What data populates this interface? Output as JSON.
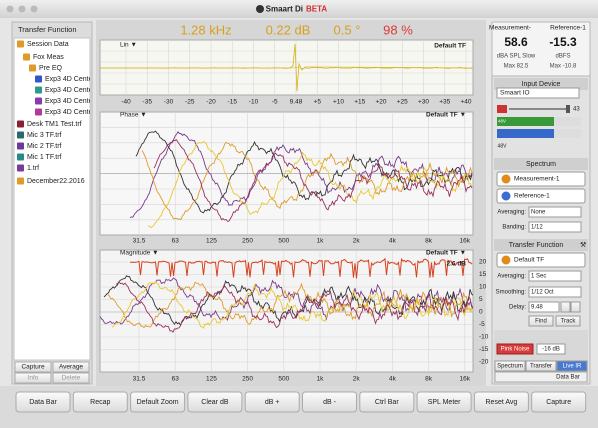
{
  "window": {
    "app_name": "Smaart Di",
    "badge": "BETA"
  },
  "readouts": [
    "1.28 kHz",
    "0.22 dB",
    "0.5 °",
    "98 %"
  ],
  "left_panel": {
    "title": "Transfer Function",
    "tree": [
      "Session Data",
      "Fox Meas",
      "Pre EQ",
      "Exp3 4D Cente",
      "Exp3 4D Cente",
      "Exp3 4D Cente",
      "Exp3 4D Cente",
      "Desk TM1 Test.trf",
      "Mic 3 TF.trf",
      "Mic 2 TF.trf",
      "Mic 1 TF.trf",
      "1.trf",
      "December22.2016"
    ],
    "buttons": [
      "Capture",
      "Average",
      "Info",
      "Delete"
    ]
  },
  "plots": {
    "live_ir": {
      "label": "Lin ▼",
      "trace": "Default TF",
      "x_ticks": [
        "-40",
        "-35",
        "-30",
        "-25",
        "-20",
        "-15",
        "-10",
        "-5",
        "9.48",
        "+5",
        "+10",
        "+15",
        "+20",
        "+25",
        "+30",
        "+35",
        "+40"
      ]
    },
    "phase": {
      "label": "Phase ▼",
      "trace": "Default TF ▼"
    },
    "freq_ticks": [
      "31.5",
      "63",
      "125",
      "250",
      "500",
      "1k",
      "2k",
      "4k",
      "8k",
      "16k"
    ],
    "magnitude": {
      "label": "Magnitude ▼",
      "trace": "Default TF ▼",
      "value": "2.6 dB",
      "y_ticks": [
        "20",
        "15",
        "10",
        "5",
        "0",
        "-5",
        "-10",
        "-15",
        "-20"
      ]
    }
  },
  "right_panel": {
    "meter": {
      "col1": "Measurement-",
      "col2": "Reference-1",
      "value1": "58.6",
      "value2": "-15.3",
      "unit1": "dBA SPL Slow",
      "unit2": "dBFS",
      "max1": "Max  82.5",
      "max2": "Max  -10.8"
    },
    "input_device": {
      "title": "Input Device",
      "device": "Smaart IO",
      "gain": "43",
      "phantom1": "48V",
      "phantom2": "48V"
    },
    "spectrum": {
      "title": "Spectrum",
      "traces": [
        "Measurement-1",
        "Reference-1"
      ],
      "averaging_label": "Averaging:",
      "averaging": "None",
      "banding_label": "Banding:",
      "banding": "1/12"
    },
    "transfer_function": {
      "title": "Transfer Function",
      "trace": "Default TF",
      "averaging_label": "Averaging:",
      "averaging": "1 Sec",
      "smoothing_label": "Smoothing:",
      "smoothing": "1/12 Oct",
      "delay_label": "Delay:",
      "delay": "9.48",
      "buttons": [
        "Find",
        "Track"
      ]
    },
    "generator": {
      "button": "Pink Noise",
      "level": "-16 dB"
    },
    "tabs": [
      "Spectrum",
      "Transfer",
      "Live IR"
    ],
    "data_bar": "Data Bar"
  },
  "toolbar": [
    "Data Bar",
    "Recap",
    "Default Zoom",
    "Clear dB",
    "dB +",
    "dB -",
    "Ctrl Bar",
    "SPL Meter",
    "Reset Avg",
    "Capture"
  ]
}
